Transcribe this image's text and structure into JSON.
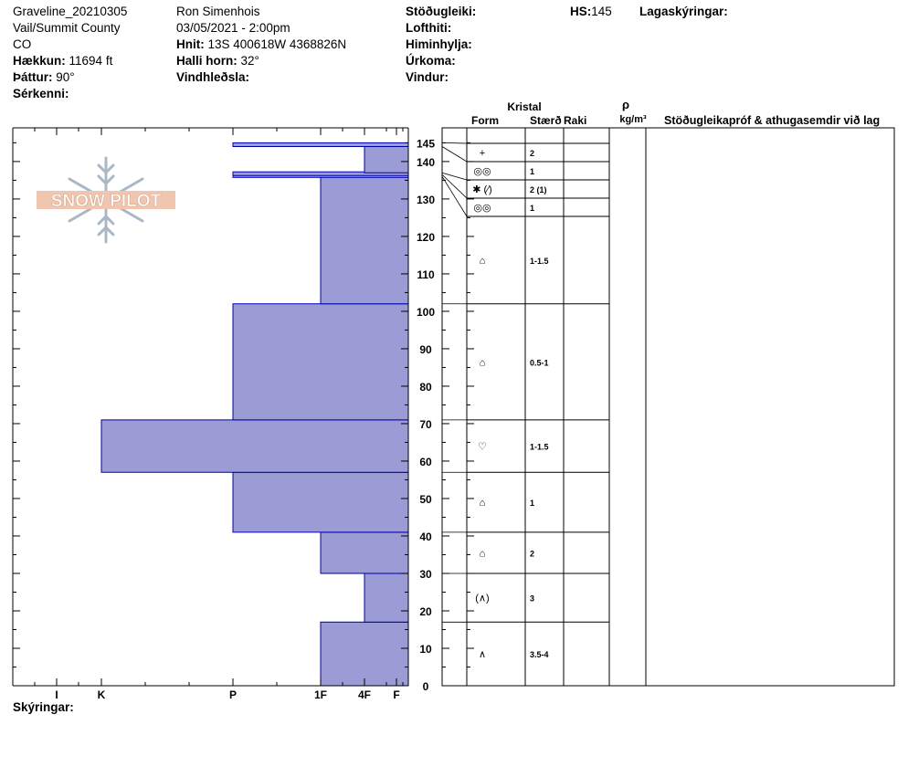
{
  "header": {
    "site": "Graveline_20210305",
    "location": "Vail/Summit County",
    "state": "CO",
    "elevation_label": "Hækkun:",
    "elevation_value": "11694 ft",
    "aspect_label": "Þáttur:",
    "aspect_value": "90°",
    "specifics_label": "Sérkenni:",
    "observer": "Ron Simenhois",
    "datetime": "03/05/2021 - 2:00pm",
    "coords_label": "Hnit:",
    "coords_value": "13S 400618W 4368826N",
    "slope_label": "Halli horn:",
    "slope_value": "32°",
    "wind_loading_label": "Vindhleðsla:",
    "stability_label": "Stöðugleiki:",
    "air_temp_label": "Lofthiti:",
    "sky_label": "Himinhylja:",
    "precip_label": "Úrkoma:",
    "wind_label": "Vindur:",
    "hs_label": "HS:",
    "hs_value": "145",
    "layer_notes_label": "Lagaskýringar:",
    "notes_label": "Skýringar:"
  },
  "logo_text": "SNOW PILOT",
  "table": {
    "kristal": "Kristal",
    "form": "Form",
    "size": "Stærð",
    "moisture": "Raki",
    "rho": "ρ",
    "density_unit": "kg/m³",
    "comments": "Stöðugleikapróf & athugasemdir við lag"
  },
  "colors": {
    "fill": "#9b9bd6",
    "stroke": "#0000aa",
    "grid": "#000000"
  },
  "chart_data": {
    "type": "bar",
    "orientation": "horizontal",
    "y_axis": {
      "label": "",
      "ticks": [
        0,
        10,
        20,
        30,
        40,
        50,
        60,
        70,
        80,
        90,
        100,
        110,
        120,
        130,
        140,
        145
      ],
      "range": [
        0,
        145
      ]
    },
    "x_axis": {
      "label": "",
      "ticks": [
        "I",
        "K",
        "P",
        "1F",
        "4F",
        "F"
      ]
    },
    "hardness_scale": [
      "F",
      "4F",
      "1F",
      "P",
      "K",
      "I"
    ],
    "layers": [
      {
        "bottom": 0,
        "top": 17,
        "hardness": "1F",
        "form_symbol": "∧",
        "size": "3.5-4"
      },
      {
        "bottom": 17,
        "top": 30,
        "hardness": "4F",
        "form_symbol": "(∧)",
        "size": "3"
      },
      {
        "bottom": 30,
        "top": 41,
        "hardness": "1F",
        "form_symbol": "⌂",
        "size": "2"
      },
      {
        "bottom": 41,
        "top": 57,
        "hardness": "P",
        "form_symbol": "⌂",
        "size": "1"
      },
      {
        "bottom": 57,
        "top": 71,
        "hardness": "K",
        "form_symbol": "♡",
        "size": "1-1.5"
      },
      {
        "bottom": 71,
        "top": 102,
        "hardness": "P",
        "form_symbol": "⌂",
        "size": "0.5-1"
      },
      {
        "bottom": 102,
        "top": 136,
        "hardness": "1F",
        "form_symbol": "⌂",
        "size": "1-1.5"
      },
      {
        "bottom": 136,
        "top": 136.5,
        "hardness": "P",
        "form_symbol": "◎◎",
        "size": "1"
      },
      {
        "bottom": 136.5,
        "top": 137,
        "hardness": "P",
        "form_symbol": "✱ (⁄)",
        "size": "2 (1)"
      },
      {
        "bottom": 137,
        "top": 144,
        "hardness": "4F",
        "form_symbol": "◎◎",
        "size": "1"
      },
      {
        "bottom": 144,
        "top": 145,
        "hardness": "P",
        "form_symbol": "+",
        "size": "2"
      }
    ]
  }
}
